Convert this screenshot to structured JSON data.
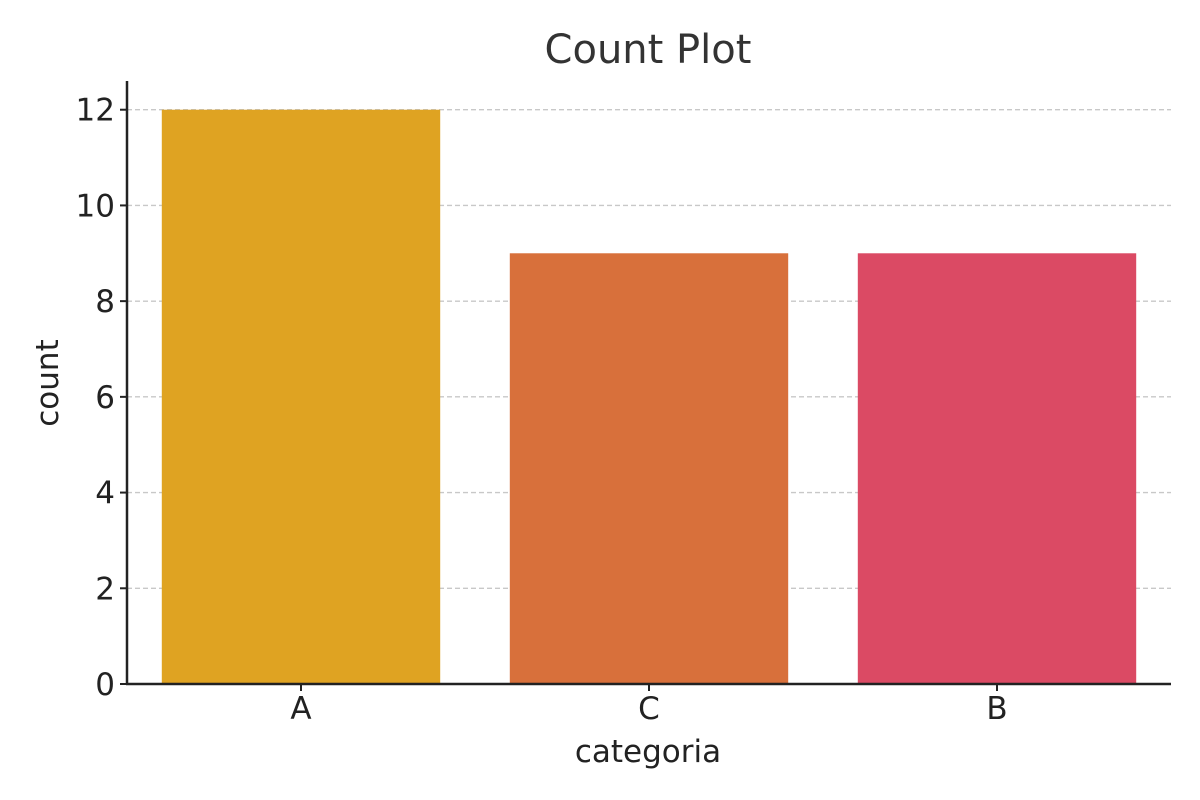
{
  "chart_data": {
    "type": "bar",
    "title": "Count Plot",
    "xlabel": "categoria",
    "ylabel": "count",
    "categories": [
      "A",
      "C",
      "B"
    ],
    "values": [
      12,
      9,
      9
    ],
    "colors": [
      "#DFA322",
      "#D8703B",
      "#DB4A64"
    ],
    "ylim": [
      0,
      12.6
    ],
    "yticks": [
      0,
      2,
      4,
      6,
      8,
      10,
      12
    ],
    "grid": "y-dashed",
    "legend": "none"
  }
}
